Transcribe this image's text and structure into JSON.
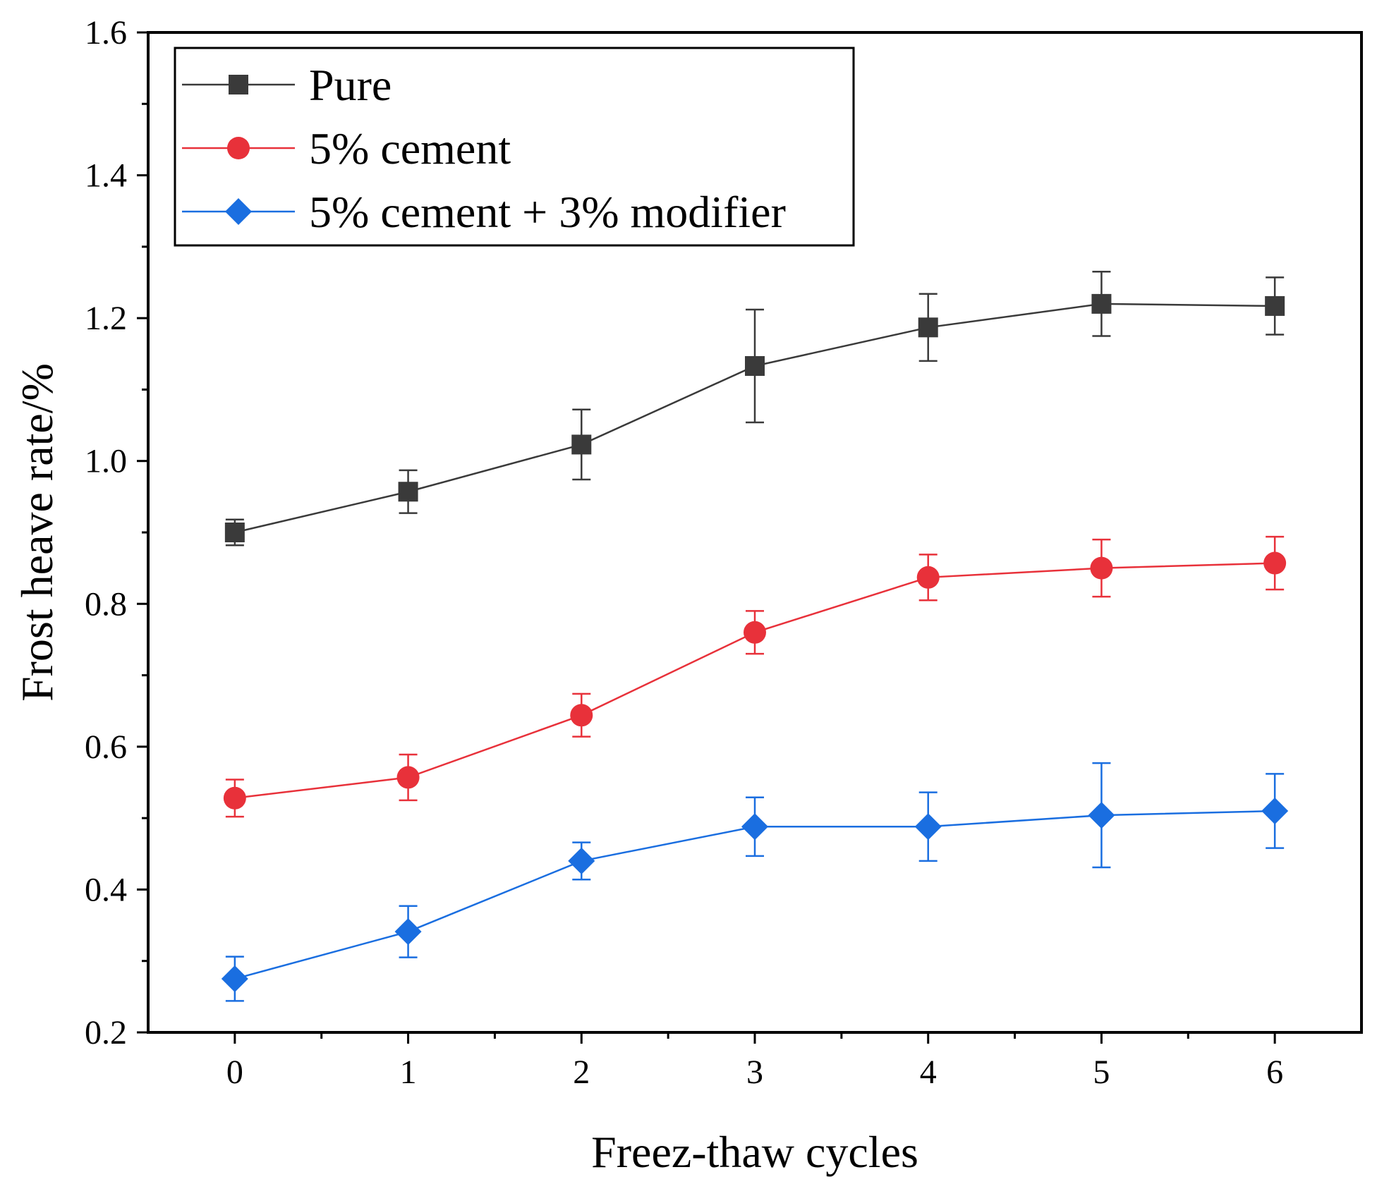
{
  "chart_data": {
    "type": "line",
    "title": "",
    "xlabel": "Freez-thaw cycles",
    "ylabel": "Frost heave rate/%",
    "x": [
      0,
      1,
      2,
      3,
      4,
      5,
      6
    ],
    "xlim": [
      -0.5,
      6.5
    ],
    "ylim": [
      0.2,
      1.6
    ],
    "xticks": [
      0,
      1,
      2,
      3,
      4,
      5,
      6
    ],
    "xtick_labels": [
      "0",
      "1",
      "2",
      "3",
      "4",
      "5",
      "6"
    ],
    "yticks": [
      0.2,
      0.4,
      0.6,
      0.8,
      1.0,
      1.2,
      1.4,
      1.6
    ],
    "ytick_labels": [
      "0.2",
      "0.4",
      "0.6",
      "0.8",
      "1.0",
      "1.2",
      "1.4",
      "1.6"
    ],
    "grid": false,
    "legend_position": "top-left",
    "series": [
      {
        "name": "Pure",
        "color": "#3a3a3a",
        "marker": "square",
        "values": [
          0.9,
          0.957,
          1.023,
          1.133,
          1.187,
          1.22,
          1.217
        ],
        "errors": [
          0.018,
          0.03,
          0.049,
          0.079,
          0.047,
          0.045,
          0.04
        ]
      },
      {
        "name": "5% cement",
        "color": "#e8313a",
        "marker": "circle",
        "values": [
          0.528,
          0.557,
          0.644,
          0.76,
          0.837,
          0.85,
          0.857
        ],
        "errors": [
          0.026,
          0.032,
          0.03,
          0.03,
          0.032,
          0.04,
          0.037
        ]
      },
      {
        "name": "5% cement + 3% modifier",
        "color": "#1a6ee0",
        "marker": "diamond",
        "values": [
          0.275,
          0.341,
          0.44,
          0.488,
          0.488,
          0.504,
          0.51
        ],
        "errors": [
          0.031,
          0.036,
          0.026,
          0.041,
          0.048,
          0.073,
          0.052
        ]
      }
    ]
  }
}
